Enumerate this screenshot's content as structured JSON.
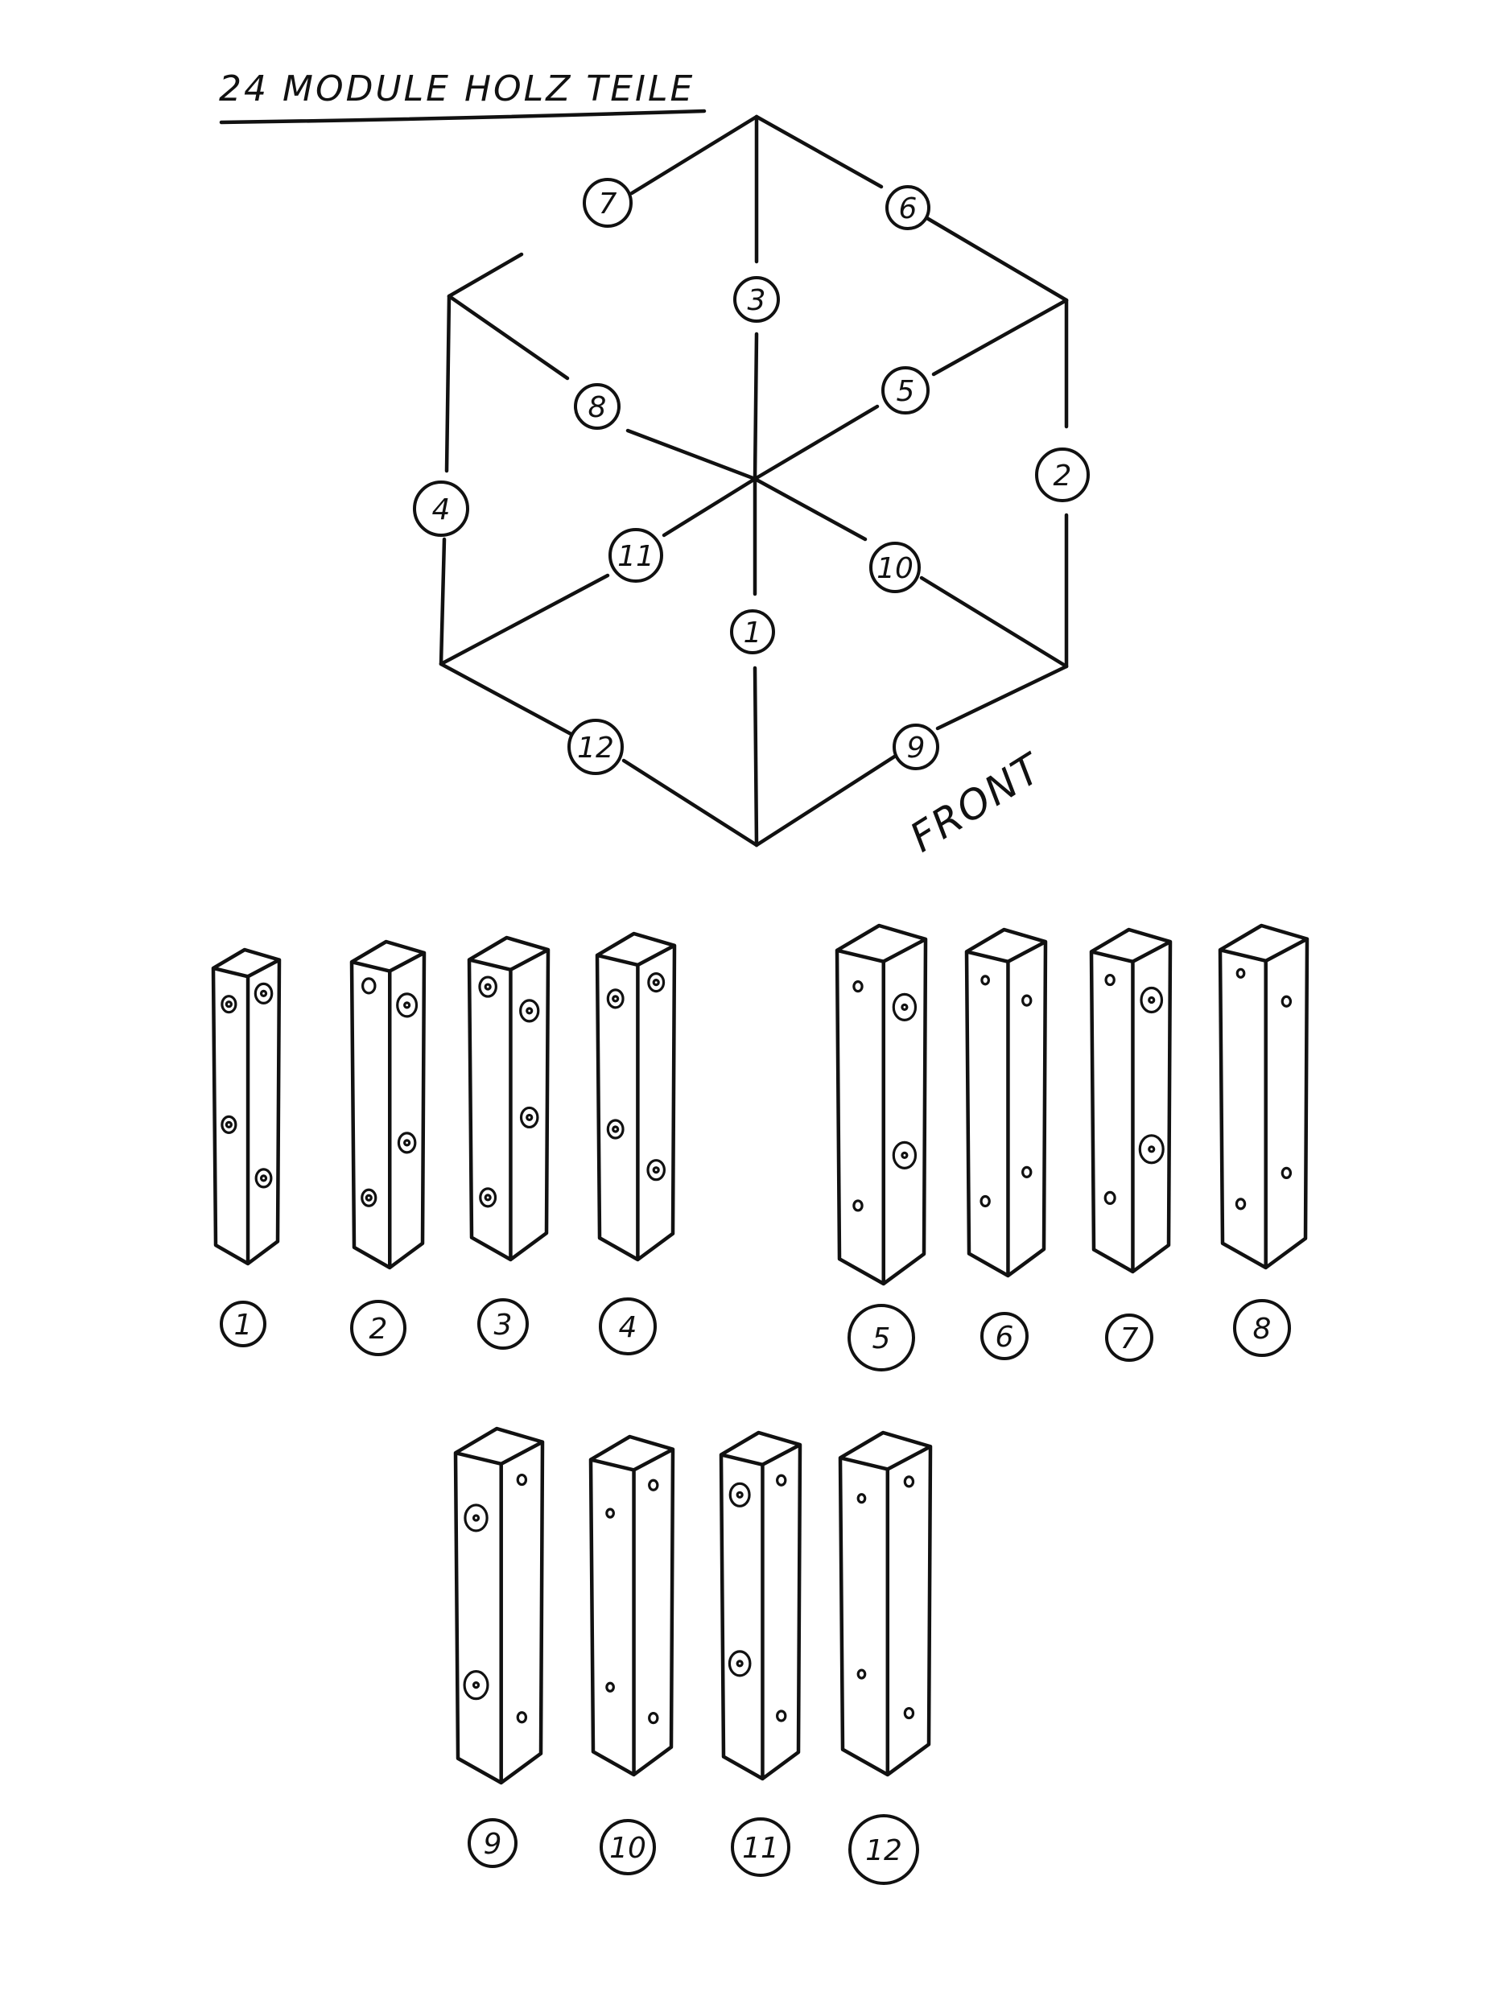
{
  "title": "24 MODULE HOLZ TEILE",
  "orientation_label": "FRONT",
  "ink_color": "#111111",
  "paper_color": "#ffffff",
  "hexagon": {
    "edges": [
      {
        "label": "7"
      },
      {
        "label": "6"
      },
      {
        "label": "2"
      },
      {
        "label": "9"
      },
      {
        "label": "12"
      },
      {
        "label": "4"
      }
    ],
    "spokes": [
      {
        "label": "3"
      },
      {
        "label": "5"
      },
      {
        "label": "10"
      },
      {
        "label": "1"
      },
      {
        "label": "11"
      },
      {
        "label": "8"
      }
    ]
  },
  "parts": [
    {
      "label": "1"
    },
    {
      "label": "2"
    },
    {
      "label": "3"
    },
    {
      "label": "4"
    },
    {
      "label": "5"
    },
    {
      "label": "6"
    },
    {
      "label": "7"
    },
    {
      "label": "8"
    },
    {
      "label": "9"
    },
    {
      "label": "10"
    },
    {
      "label": "11"
    },
    {
      "label": "12"
    }
  ]
}
